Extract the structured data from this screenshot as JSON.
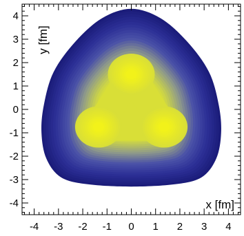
{
  "chart_data": {
    "type": "heatmap",
    "title": "",
    "xlabel": "x [fm]",
    "ylabel": "y [fm]",
    "xlim": [
      -4.5,
      4.5
    ],
    "ylim": [
      -4.5,
      4.5
    ],
    "x_ticks": [
      -4,
      -3,
      -2,
      -1,
      0,
      1,
      2,
      3,
      4
    ],
    "y_ticks": [
      -4,
      -3,
      -2,
      -1,
      0,
      1,
      2,
      3,
      4
    ],
    "x_tick_labels": [
      "-4",
      "-3",
      "-2",
      "-1",
      "0",
      "1",
      "2",
      "3",
      "4"
    ],
    "y_tick_labels": [
      "-4",
      "-3",
      "-2",
      "-1",
      "0",
      "1",
      "2",
      "3",
      "4"
    ],
    "grid": false,
    "colorscale": [
      "#1b1c7a",
      "#2c2f96",
      "#4a51a8",
      "#8f9a8a",
      "#c9d24a",
      "#f2f21a"
    ],
    "density_peaks": [
      {
        "x": 0.0,
        "y": 1.5
      },
      {
        "x": -1.35,
        "y": -0.75
      },
      {
        "x": 1.35,
        "y": -0.75
      }
    ],
    "outer_contour": [
      [
        0.0,
        4.3
      ],
      [
        1.2,
        3.9
      ],
      [
        2.3,
        2.9
      ],
      [
        3.2,
        1.6
      ],
      [
        3.6,
        0.2
      ],
      [
        3.7,
        -1.0
      ],
      [
        3.5,
        -2.1
      ],
      [
        2.9,
        -2.9
      ],
      [
        1.8,
        -3.2
      ],
      [
        0.0,
        -3.3
      ],
      [
        -1.8,
        -3.2
      ],
      [
        -2.9,
        -2.9
      ],
      [
        -3.5,
        -2.1
      ],
      [
        -3.7,
        -1.0
      ],
      [
        -3.6,
        0.2
      ],
      [
        -3.2,
        1.6
      ],
      [
        -2.3,
        2.9
      ],
      [
        -1.2,
        3.9
      ]
    ]
  }
}
